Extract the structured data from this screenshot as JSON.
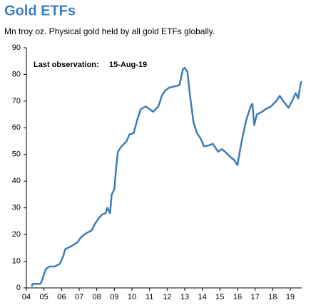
{
  "chart_data": {
    "type": "line",
    "title": "Gold ETFs",
    "subtitle": "Mn troy oz. Physical gold held by all gold ETFs globally.",
    "annotations": [
      "Last observation:",
      "15-Aug-19"
    ],
    "xlim": [
      2004,
      2019.65
    ],
    "xticks": [
      {
        "value": 2004,
        "label": "04"
      },
      {
        "value": 2005,
        "label": "05"
      },
      {
        "value": 2006,
        "label": "06"
      },
      {
        "value": 2007,
        "label": "07"
      },
      {
        "value": 2008,
        "label": "08"
      },
      {
        "value": 2009,
        "label": "09"
      },
      {
        "value": 2010,
        "label": "10"
      },
      {
        "value": 2011,
        "label": "11"
      },
      {
        "value": 2012,
        "label": "12"
      },
      {
        "value": 2013,
        "label": "13"
      },
      {
        "value": 2014,
        "label": "14"
      },
      {
        "value": 2015,
        "label": "15"
      },
      {
        "value": 2016,
        "label": "16"
      },
      {
        "value": 2017,
        "label": "17"
      },
      {
        "value": 2018,
        "label": "18"
      },
      {
        "value": 2019,
        "label": "19"
      }
    ],
    "ylim": [
      0,
      90
    ],
    "yticks": [
      0,
      10,
      20,
      30,
      40,
      50,
      60,
      70,
      80,
      90
    ],
    "grid": false,
    "color": "#3d7cb8",
    "x": [
      2004.3,
      2004.35,
      2004.8,
      2004.9,
      2005.1,
      2005.3,
      2005.6,
      2005.9,
      2006.1,
      2006.2,
      2006.5,
      2006.9,
      2007.1,
      2007.4,
      2007.7,
      2007.9,
      2008.1,
      2008.3,
      2008.5,
      2008.6,
      2008.75,
      2008.85,
      2009.0,
      2009.1,
      2009.2,
      2009.4,
      2009.7,
      2009.85,
      2010.1,
      2010.3,
      2010.5,
      2010.8,
      2011.0,
      2011.2,
      2011.5,
      2011.7,
      2011.9,
      2012.1,
      2012.4,
      2012.7,
      2012.9,
      2013.0,
      2013.15,
      2013.3,
      2013.5,
      2013.7,
      2013.9,
      2014.1,
      2014.4,
      2014.6,
      2014.9,
      2015.1,
      2015.3,
      2015.6,
      2015.8,
      2016.0,
      2016.15,
      2016.3,
      2016.5,
      2016.75,
      2016.85,
      2016.95,
      2017.1,
      2017.4,
      2017.6,
      2017.9,
      2018.2,
      2018.4,
      2018.6,
      2018.9,
      2019.1,
      2019.3,
      2019.45,
      2019.55,
      2019.62
    ],
    "values": [
      0.5,
      1.5,
      1.5,
      3,
      7,
      8,
      8,
      9,
      12,
      14.5,
      15.5,
      17,
      19,
      20.5,
      21.5,
      24,
      26,
      27.5,
      28,
      30,
      28,
      35,
      37,
      45,
      51,
      53,
      55,
      57.5,
      58,
      63,
      67,
      68,
      67,
      66,
      68,
      72,
      74,
      75,
      75.5,
      76,
      82,
      82.5,
      81,
      72,
      62,
      58,
      56,
      53,
      53.5,
      54,
      51,
      52,
      51,
      49,
      48,
      46,
      52,
      57,
      63,
      68,
      69,
      61,
      65,
      66,
      67,
      68,
      70,
      72,
      70,
      67.5,
      70,
      73,
      71,
      75,
      77.5
    ]
  }
}
